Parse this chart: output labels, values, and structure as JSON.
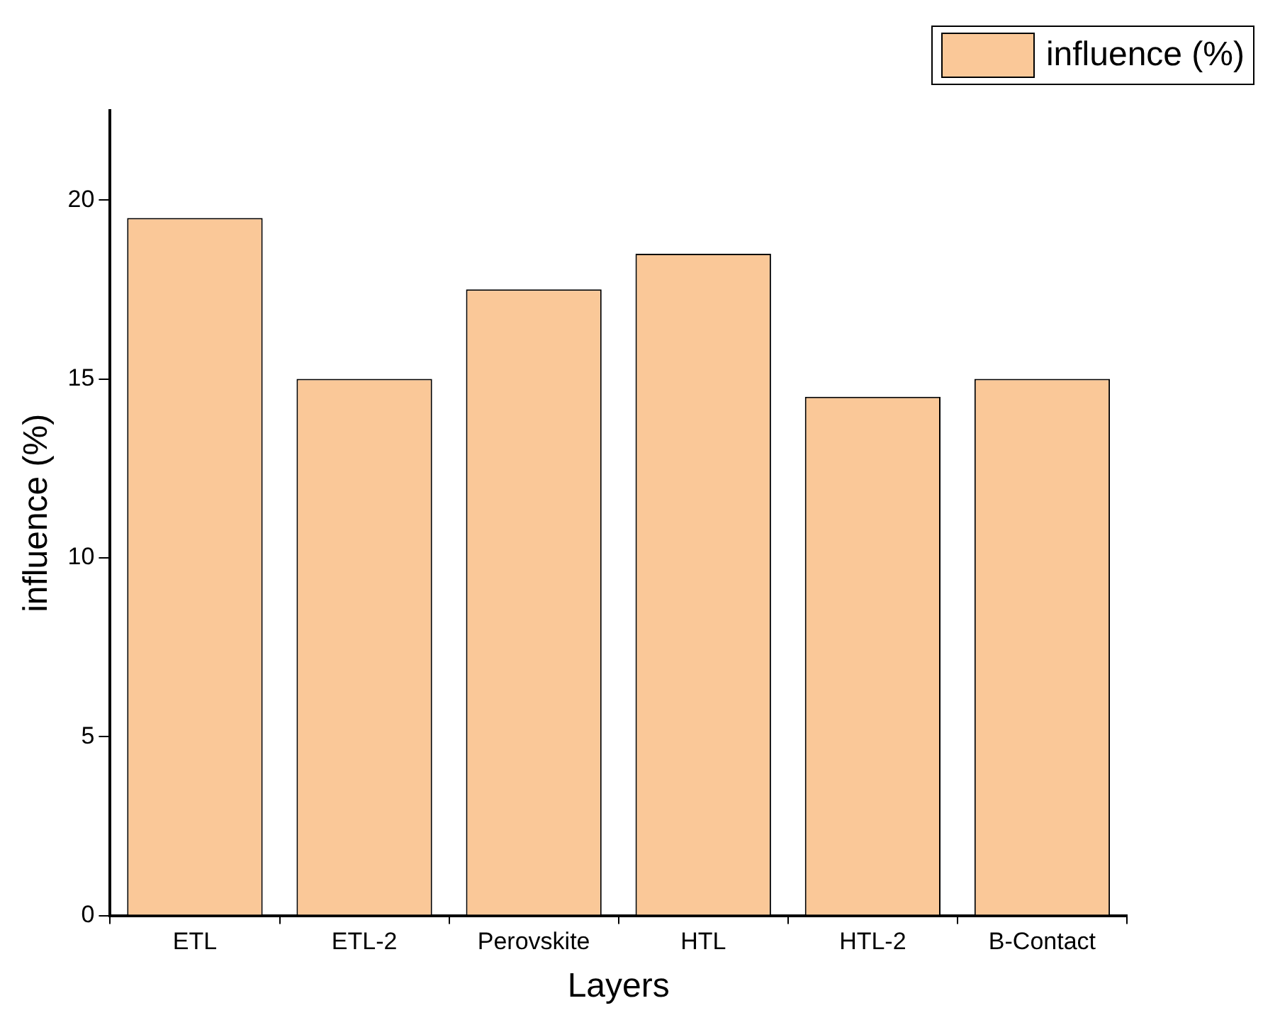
{
  "chart_data": {
    "type": "bar",
    "xlabel": "Layers",
    "ylabel": "influence (%)",
    "categories": [
      "ETL",
      "ETL-2",
      "Perovskite",
      "HTL",
      "HTL-2",
      "B-Contact"
    ],
    "series": [
      {
        "name": "influence (%)",
        "color": "#fac898",
        "values": [
          19.5,
          15,
          17.5,
          18.5,
          14.5,
          15
        ]
      }
    ],
    "ylim": [
      0,
      22.5
    ],
    "yticks": [
      0,
      5,
      10,
      15,
      20
    ],
    "grid": false,
    "legend": "top right"
  }
}
